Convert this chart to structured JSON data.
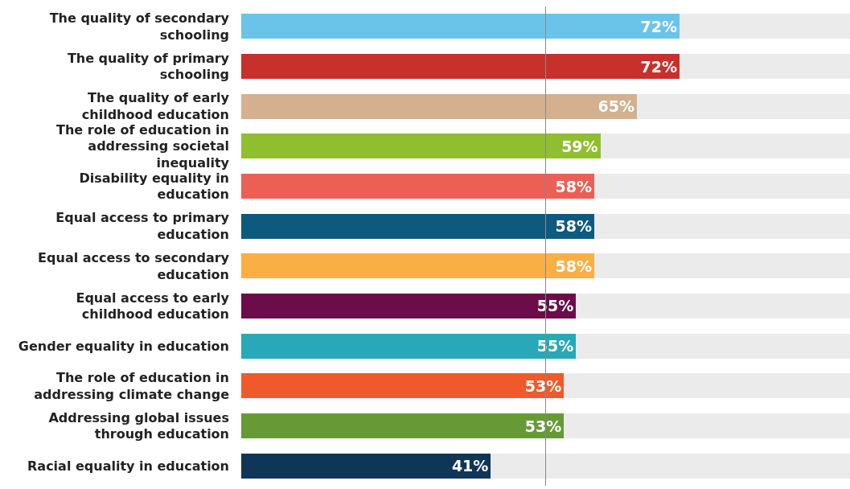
{
  "chart_data": {
    "type": "bar",
    "orientation": "horizontal",
    "stacked": true,
    "tick_labels": "y",
    "xlim": [
      0,
      100
    ],
    "categories": [
      "The quality of secondary schooling",
      "The quality of primary schooling",
      "The quality of early childhood education",
      "The role of education in addressing societal inequality",
      "Disability equality in education",
      "Equal access to primary education",
      "Equal access to secondary education",
      "Equal access to early childhood education",
      "Gender equality in education",
      "The role of education in addressing climate change",
      "Addressing global issues through education",
      "Racial equality in education"
    ],
    "series": [
      {
        "colors": [
          "#6ac4ea",
          "#c8302b",
          "#d4b08f",
          "#8fbe2f",
          "#ec5f55",
          "#0e5a7e",
          "#f8b044",
          "#6b0d4a",
          "#28a8b8",
          "#f05a2a",
          "#669a37",
          "#0f3557"
        ],
        "values": [
          72,
          72,
          65,
          59,
          58,
          58,
          58,
          55,
          55,
          53,
          53,
          41
        ],
        "value_labels": [
          "72%",
          "72%",
          "65%",
          "59%",
          "58%",
          "58%",
          "58%",
          "55%",
          "55%",
          "53%",
          "53%",
          "41%"
        ]
      },
      {
        "color": "#ebebeb",
        "values": [
          28,
          28,
          35,
          41,
          42,
          42,
          42,
          45,
          45,
          47,
          47,
          59
        ]
      }
    ],
    "ref_lines": [
      {
        "axis": "x",
        "value": 50,
        "color": "#888888"
      }
    ]
  }
}
